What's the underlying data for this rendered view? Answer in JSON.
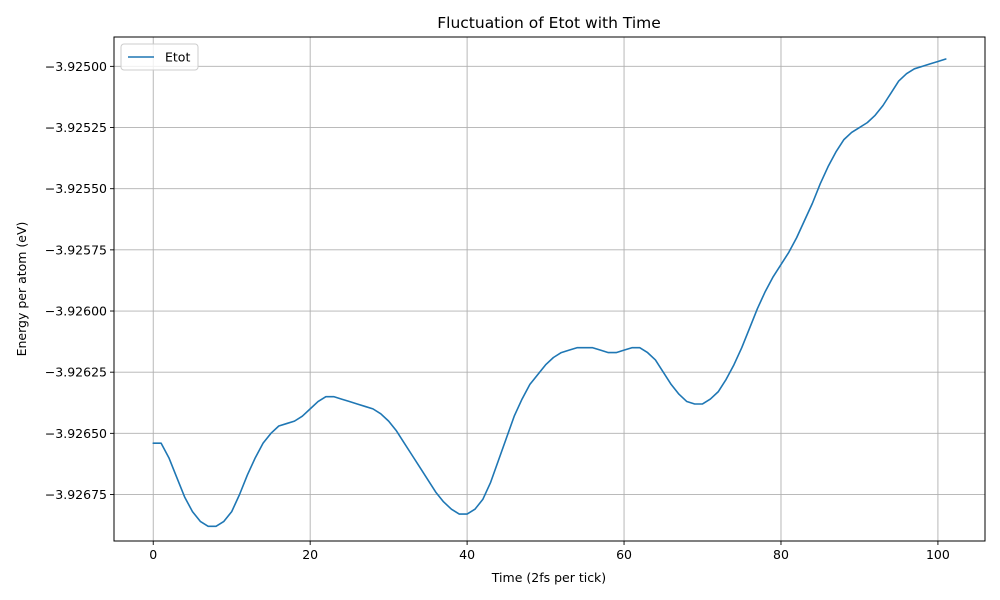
{
  "chart_data": {
    "type": "line",
    "title": "Fluctuation of Etot with Time",
    "xlabel": "Time (2fs per tick)",
    "ylabel": "Energy per atom (eV)",
    "xlim": [
      -5,
      106
    ],
    "ylim": [
      -3.92694,
      -3.92488
    ],
    "xticks": [
      0,
      20,
      40,
      60,
      80,
      100
    ],
    "xtick_labels": [
      "0",
      "20",
      "40",
      "60",
      "80",
      "100"
    ],
    "yticks": [
      -3.92675,
      -3.9265,
      -3.92625,
      -3.926,
      -3.92575,
      -3.9255,
      -3.92525,
      -3.925
    ],
    "ytick_labels": [
      "−3.92675",
      "−3.92650",
      "−3.92625",
      "−3.92600",
      "−3.92575",
      "−3.92550",
      "−3.92525",
      "−3.92500"
    ],
    "grid": true,
    "legend_position": "upper-left",
    "series": [
      {
        "name": "Etot",
        "color": "#1f77b4",
        "x": [
          0,
          1,
          2,
          3,
          4,
          5,
          6,
          7,
          8,
          9,
          10,
          11,
          12,
          13,
          14,
          15,
          16,
          17,
          18,
          19,
          20,
          21,
          22,
          23,
          24,
          25,
          26,
          27,
          28,
          29,
          30,
          31,
          32,
          33,
          34,
          35,
          36,
          37,
          38,
          39,
          40,
          41,
          42,
          43,
          44,
          45,
          46,
          47,
          48,
          49,
          50,
          51,
          52,
          53,
          54,
          55,
          56,
          57,
          58,
          59,
          60,
          61,
          62,
          63,
          64,
          65,
          66,
          67,
          68,
          69,
          70,
          71,
          72,
          73,
          74,
          75,
          76,
          77,
          78,
          79,
          80,
          81,
          82,
          83,
          84,
          85,
          86,
          87,
          88,
          89,
          90,
          91,
          92,
          93,
          94,
          95,
          96,
          97,
          98,
          99,
          100,
          101
        ],
        "values": [
          -3.92654,
          -3.92654,
          -3.9266,
          -3.92668,
          -3.92676,
          -3.92682,
          -3.92686,
          -3.92688,
          -3.92688,
          -3.92686,
          -3.92682,
          -3.92675,
          -3.92667,
          -3.9266,
          -3.92654,
          -3.9265,
          -3.92647,
          -3.92646,
          -3.92645,
          -3.92643,
          -3.9264,
          -3.92637,
          -3.92635,
          -3.92635,
          -3.92636,
          -3.92637,
          -3.92638,
          -3.92639,
          -3.9264,
          -3.92642,
          -3.92645,
          -3.92649,
          -3.92654,
          -3.92659,
          -3.92664,
          -3.92669,
          -3.92674,
          -3.92678,
          -3.92681,
          -3.92683,
          -3.92683,
          -3.92681,
          -3.92677,
          -3.9267,
          -3.92661,
          -3.92652,
          -3.92643,
          -3.92636,
          -3.9263,
          -3.92626,
          -3.92622,
          -3.92619,
          -3.92617,
          -3.92616,
          -3.92615,
          -3.92615,
          -3.92615,
          -3.92616,
          -3.92617,
          -3.92617,
          -3.92616,
          -3.92615,
          -3.92615,
          -3.92617,
          -3.9262,
          -3.92625,
          -3.9263,
          -3.92634,
          -3.92637,
          -3.92638,
          -3.92638,
          -3.92636,
          -3.92633,
          -3.92628,
          -3.92622,
          -3.92615,
          -3.92607,
          -3.92599,
          -3.92592,
          -3.92586,
          -3.92581,
          -3.92576,
          -3.9257,
          -3.92563,
          -3.92556,
          -3.92548,
          -3.92541,
          -3.92535,
          -3.9253,
          -3.92527,
          -3.92525,
          -3.92523,
          -3.9252,
          -3.92516,
          -3.92511,
          -3.92506,
          -3.92503,
          -3.92501,
          -3.925,
          -3.92499,
          -3.92498,
          -3.92497
        ]
      }
    ]
  }
}
